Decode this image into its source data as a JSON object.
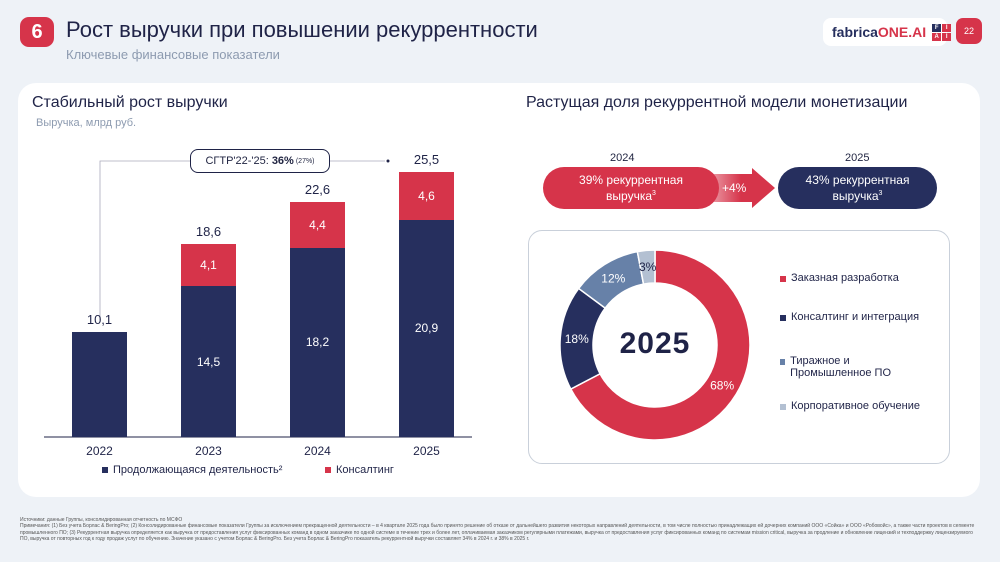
{
  "header": {
    "slide_number": "6",
    "title": "Рост выручки при повышении рекуррентности",
    "subtitle": "Ключевые финансовые показатели",
    "logo_text_a": "fabrica",
    "logo_text_b": "ONE.AI",
    "logo_grid": [
      "F",
      "I",
      "A",
      "I"
    ],
    "page": "22"
  },
  "left": {
    "title": "Стабильный рост выручки",
    "unit": "Выручка, млрд руб.",
    "cagr_prefix": "CГТР'22-'25: ",
    "cagr_value": "36%",
    "cagr_note": "(27%)"
  },
  "chart_data": {
    "type": "bar",
    "stacked": true,
    "categories": [
      "2022",
      "2023",
      "2024",
      "2025"
    ],
    "series": [
      {
        "name": "Продолжающаяся деятельность²",
        "color": "#262f5e",
        "values": [
          10.1,
          14.5,
          18.2,
          20.9
        ],
        "labels": [
          "10,1",
          "14,5",
          "18,2",
          "20,9"
        ]
      },
      {
        "name": "Консалтинг",
        "color": "#d6344a",
        "values": [
          0,
          4.1,
          4.4,
          4.6
        ],
        "labels": [
          "",
          "4,1",
          "4,4",
          "4,6"
        ]
      }
    ],
    "totals": [
      "10,1",
      "18,6",
      "22,6",
      "25,5"
    ],
    "ylabel": "Выручка, млрд руб."
  },
  "right": {
    "title": "Растущая доля рекуррентной модели монетизации",
    "year_a": "2024",
    "year_b": "2025",
    "pill_a": "39% рекуррентная выручка",
    "pill_b": "43% рекуррентная выручка",
    "sup": "3",
    "delta": "+4%",
    "donut": {
      "center": "2025",
      "slices": [
        {
          "label": "Заказная разработка",
          "value": 68,
          "text": "68%",
          "color": "#d6344a"
        },
        {
          "label": "Консалтинг и интеграция",
          "value": 18,
          "text": "18%",
          "color": "#262f5e"
        },
        {
          "label": "Тиражное и Промышленное ПО",
          "value": 12,
          "text": "12%",
          "color": "#6781a8"
        },
        {
          "label": "Корпоративное обучение",
          "value": 3,
          "text": "3%",
          "color": "#b3c0d2"
        }
      ]
    }
  },
  "footnotes": [
    "Источники: данные Группы, консолидированная отчетность по МСФО",
    "Примечания: (1) Без учета Борлас & BeringPro; (2) Консолидированные финансовые показатели Группы за исключением прекращенной деятельности – в 4 квартале 2025 года было принято решение об отказе от дальнейшего развития некоторых направлений деятельности, в том числе полностью принадлежащих ей дочерних компаний ООО «Сойка» и ООО «Робовойс», а также части проектов в сегменте промышленного ПО; (3) Рекуррентная выручка определяется как выручка от предоставления услуг фиксированных команд в одном заказчике по одной системе в течение трех и более лет, оплачиваемая заказчиком регулярными платежами, выручка от предоставления услуг фиксированных команд по системам mission critical, выручка за продление и обновление лицензий и техподдержку лицензируемого ПО, выручка от повторных год к году продаж услуг по обучению. Значение указано с учетом Борлас & BeringPro. Без учета Борлас & BeringPro показатель рекуррентной выручки составляет 34% в 2024 г. и 38% в 2025 г."
  ]
}
